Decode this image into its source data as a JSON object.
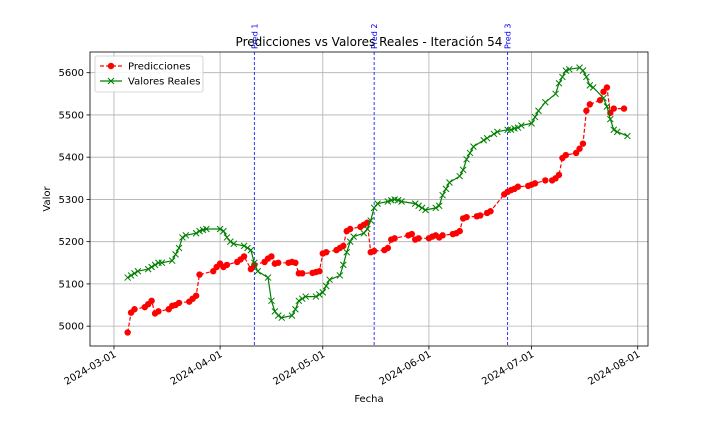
{
  "chart_data": {
    "type": "line",
    "title": "Predicciones vs Valores Reales - Iteración 54",
    "xlabel": "Fecha",
    "ylabel": "Valor",
    "x_axis_type": "date",
    "xlim": [
      "2024-02-23",
      "2024-08-04"
    ],
    "ylim": [
      4953,
      5649
    ],
    "x_ticks": [
      "2024-03-01",
      "2024-04-01",
      "2024-05-01",
      "2024-06-01",
      "2024-07-01",
      "2024-08-01"
    ],
    "y_ticks": [
      5000,
      5100,
      5200,
      5300,
      5400,
      5500,
      5600
    ],
    "grid": true,
    "legend_position": "top-left",
    "vertical_lines": [
      {
        "date": "2024-04-11",
        "label": "Pred 1"
      },
      {
        "date": "2024-05-16",
        "label": "Pred 2"
      },
      {
        "date": "2024-06-24",
        "label": "Pred 3"
      }
    ],
    "series": [
      {
        "name": "Predicciones",
        "color": "#ff0000",
        "marker": "circle",
        "line_style": "dashed",
        "points": [
          [
            "2024-03-05",
            4985
          ],
          [
            "2024-03-06",
            5032
          ],
          [
            "2024-03-07",
            5040
          ],
          [
            "2024-03-10",
            5045
          ],
          [
            "2024-03-11",
            5052
          ],
          [
            "2024-03-12",
            5060
          ],
          [
            "2024-03-13",
            5030
          ],
          [
            "2024-03-14",
            5035
          ],
          [
            "2024-03-17",
            5040
          ],
          [
            "2024-03-18",
            5048
          ],
          [
            "2024-03-19",
            5050
          ],
          [
            "2024-03-20",
            5055
          ],
          [
            "2024-03-23",
            5058
          ],
          [
            "2024-03-24",
            5065
          ],
          [
            "2024-03-25",
            5072
          ],
          [
            "2024-03-26",
            5122
          ],
          [
            "2024-03-30",
            5130
          ],
          [
            "2024-03-31",
            5140
          ],
          [
            "2024-04-01",
            5148
          ],
          [
            "2024-04-02",
            5140
          ],
          [
            "2024-04-03",
            5145
          ],
          [
            "2024-04-06",
            5152
          ],
          [
            "2024-04-07",
            5158
          ],
          [
            "2024-04-08",
            5165
          ],
          [
            "2024-04-10",
            5135
          ],
          [
            "2024-04-11",
            5145
          ],
          [
            "2024-04-14",
            5152
          ],
          [
            "2024-04-15",
            5160
          ],
          [
            "2024-04-16",
            5165
          ],
          [
            "2024-04-17",
            5148
          ],
          [
            "2024-04-18",
            5150
          ],
          [
            "2024-04-21",
            5150
          ],
          [
            "2024-04-22",
            5152
          ],
          [
            "2024-04-23",
            5150
          ],
          [
            "2024-04-24",
            5125
          ],
          [
            "2024-04-25",
            5125
          ],
          [
            "2024-04-28",
            5126
          ],
          [
            "2024-04-29",
            5128
          ],
          [
            "2024-04-30",
            5130
          ],
          [
            "2024-05-01",
            5172
          ],
          [
            "2024-05-02",
            5175
          ],
          [
            "2024-05-05",
            5180
          ],
          [
            "2024-05-06",
            5185
          ],
          [
            "2024-05-07",
            5190
          ],
          [
            "2024-05-08",
            5225
          ],
          [
            "2024-05-09",
            5230
          ],
          [
            "2024-05-12",
            5235
          ],
          [
            "2024-05-13",
            5240
          ],
          [
            "2024-05-14",
            5245
          ],
          [
            "2024-05-15",
            5175
          ],
          [
            "2024-05-16",
            5178
          ],
          [
            "2024-05-19",
            5180
          ],
          [
            "2024-05-20",
            5185
          ],
          [
            "2024-05-21",
            5205
          ],
          [
            "2024-05-22",
            5208
          ],
          [
            "2024-05-26",
            5215
          ],
          [
            "2024-05-27",
            5218
          ],
          [
            "2024-05-28",
            5205
          ],
          [
            "2024-05-29",
            5208
          ],
          [
            "2024-06-01",
            5208
          ],
          [
            "2024-06-02",
            5212
          ],
          [
            "2024-06-03",
            5215
          ],
          [
            "2024-06-04",
            5210
          ],
          [
            "2024-06-05",
            5215
          ],
          [
            "2024-06-08",
            5218
          ],
          [
            "2024-06-09",
            5220
          ],
          [
            "2024-06-10",
            5225
          ],
          [
            "2024-06-11",
            5255
          ],
          [
            "2024-06-12",
            5258
          ],
          [
            "2024-06-15",
            5260
          ],
          [
            "2024-06-16",
            5262
          ],
          [
            "2024-06-18",
            5268
          ],
          [
            "2024-06-19",
            5272
          ],
          [
            "2024-06-23",
            5312
          ],
          [
            "2024-06-24",
            5318
          ],
          [
            "2024-06-25",
            5322
          ],
          [
            "2024-06-26",
            5325
          ],
          [
            "2024-06-27",
            5330
          ],
          [
            "2024-06-30",
            5332
          ],
          [
            "2024-07-01",
            5335
          ],
          [
            "2024-07-02",
            5338
          ],
          [
            "2024-07-05",
            5345
          ],
          [
            "2024-07-07",
            5345
          ],
          [
            "2024-07-08",
            5350
          ],
          [
            "2024-07-09",
            5358
          ],
          [
            "2024-07-10",
            5398
          ],
          [
            "2024-07-11",
            5405
          ],
          [
            "2024-07-14",
            5410
          ],
          [
            "2024-07-15",
            5420
          ],
          [
            "2024-07-16",
            5432
          ],
          [
            "2024-07-17",
            5510
          ],
          [
            "2024-07-18",
            5525
          ],
          [
            "2024-07-21",
            5535
          ],
          [
            "2024-07-22",
            5555
          ],
          [
            "2024-07-23",
            5565
          ],
          [
            "2024-07-24",
            5505
          ],
          [
            "2024-07-25",
            5515
          ],
          [
            "2024-07-28",
            5515
          ]
        ]
      },
      {
        "name": "Valores Reales",
        "color": "#008000",
        "marker": "x",
        "line_style": "solid",
        "points": [
          [
            "2024-03-05",
            5115
          ],
          [
            "2024-03-06",
            5120
          ],
          [
            "2024-03-07",
            5125
          ],
          [
            "2024-03-08",
            5130
          ],
          [
            "2024-03-11",
            5135
          ],
          [
            "2024-03-12",
            5140
          ],
          [
            "2024-03-13",
            5145
          ],
          [
            "2024-03-14",
            5150
          ],
          [
            "2024-03-15",
            5150
          ],
          [
            "2024-03-18",
            5155
          ],
          [
            "2024-03-19",
            5170
          ],
          [
            "2024-03-20",
            5185
          ],
          [
            "2024-03-21",
            5210
          ],
          [
            "2024-03-22",
            5215
          ],
          [
            "2024-03-25",
            5220
          ],
          [
            "2024-03-26",
            5225
          ],
          [
            "2024-03-27",
            5228
          ],
          [
            "2024-03-28",
            5230
          ],
          [
            "2024-04-01",
            5230
          ],
          [
            "2024-04-02",
            5225
          ],
          [
            "2024-04-03",
            5210
          ],
          [
            "2024-04-04",
            5200
          ],
          [
            "2024-04-05",
            5195
          ],
          [
            "2024-04-08",
            5190
          ],
          [
            "2024-04-09",
            5185
          ],
          [
            "2024-04-10",
            5180
          ],
          [
            "2024-04-11",
            5150
          ],
          [
            "2024-04-12",
            5130
          ],
          [
            "2024-04-15",
            5115
          ],
          [
            "2024-04-16",
            5060
          ],
          [
            "2024-04-17",
            5035
          ],
          [
            "2024-04-18",
            5025
          ],
          [
            "2024-04-19",
            5020
          ],
          [
            "2024-04-22",
            5025
          ],
          [
            "2024-04-23",
            5040
          ],
          [
            "2024-04-24",
            5060
          ],
          [
            "2024-04-25",
            5065
          ],
          [
            "2024-04-26",
            5070
          ],
          [
            "2024-04-29",
            5070
          ],
          [
            "2024-04-30",
            5075
          ],
          [
            "2024-05-01",
            5080
          ],
          [
            "2024-05-02",
            5095
          ],
          [
            "2024-05-03",
            5110
          ],
          [
            "2024-05-06",
            5120
          ],
          [
            "2024-05-07",
            5145
          ],
          [
            "2024-05-08",
            5175
          ],
          [
            "2024-05-09",
            5200
          ],
          [
            "2024-05-10",
            5212
          ],
          [
            "2024-05-13",
            5220
          ],
          [
            "2024-05-14",
            5230
          ],
          [
            "2024-05-15",
            5250
          ],
          [
            "2024-05-16",
            5280
          ],
          [
            "2024-05-17",
            5290
          ],
          [
            "2024-05-20",
            5295
          ],
          [
            "2024-05-21",
            5298
          ],
          [
            "2024-05-22",
            5300
          ],
          [
            "2024-05-23",
            5298
          ],
          [
            "2024-05-24",
            5295
          ],
          [
            "2024-05-28",
            5290
          ],
          [
            "2024-05-29",
            5285
          ],
          [
            "2024-05-30",
            5280
          ],
          [
            "2024-05-31",
            5275
          ],
          [
            "2024-06-03",
            5280
          ],
          [
            "2024-06-04",
            5285
          ],
          [
            "2024-06-05",
            5310
          ],
          [
            "2024-06-06",
            5325
          ],
          [
            "2024-06-07",
            5340
          ],
          [
            "2024-06-10",
            5355
          ],
          [
            "2024-06-11",
            5370
          ],
          [
            "2024-06-12",
            5395
          ],
          [
            "2024-06-13",
            5410
          ],
          [
            "2024-06-14",
            5425
          ],
          [
            "2024-06-17",
            5440
          ],
          [
            "2024-06-18",
            5445
          ],
          [
            "2024-06-20",
            5455
          ],
          [
            "2024-06-21",
            5460
          ],
          [
            "2024-06-24",
            5465
          ],
          [
            "2024-06-25",
            5465
          ],
          [
            "2024-06-26",
            5468
          ],
          [
            "2024-06-27",
            5470
          ],
          [
            "2024-06-28",
            5475
          ],
          [
            "2024-07-01",
            5480
          ],
          [
            "2024-07-02",
            5495
          ],
          [
            "2024-07-03",
            5510
          ],
          [
            "2024-07-05",
            5530
          ],
          [
            "2024-07-08",
            5550
          ],
          [
            "2024-07-09",
            5575
          ],
          [
            "2024-07-10",
            5590
          ],
          [
            "2024-07-11",
            5605
          ],
          [
            "2024-07-12",
            5608
          ],
          [
            "2024-07-15",
            5612
          ],
          [
            "2024-07-16",
            5605
          ],
          [
            "2024-07-17",
            5590
          ],
          [
            "2024-07-18",
            5570
          ],
          [
            "2024-07-19",
            5565
          ],
          [
            "2024-07-22",
            5540
          ],
          [
            "2024-07-23",
            5520
          ],
          [
            "2024-07-24",
            5490
          ],
          [
            "2024-07-25",
            5465
          ],
          [
            "2024-07-26",
            5460
          ],
          [
            "2024-07-29",
            5450
          ]
        ]
      }
    ]
  }
}
